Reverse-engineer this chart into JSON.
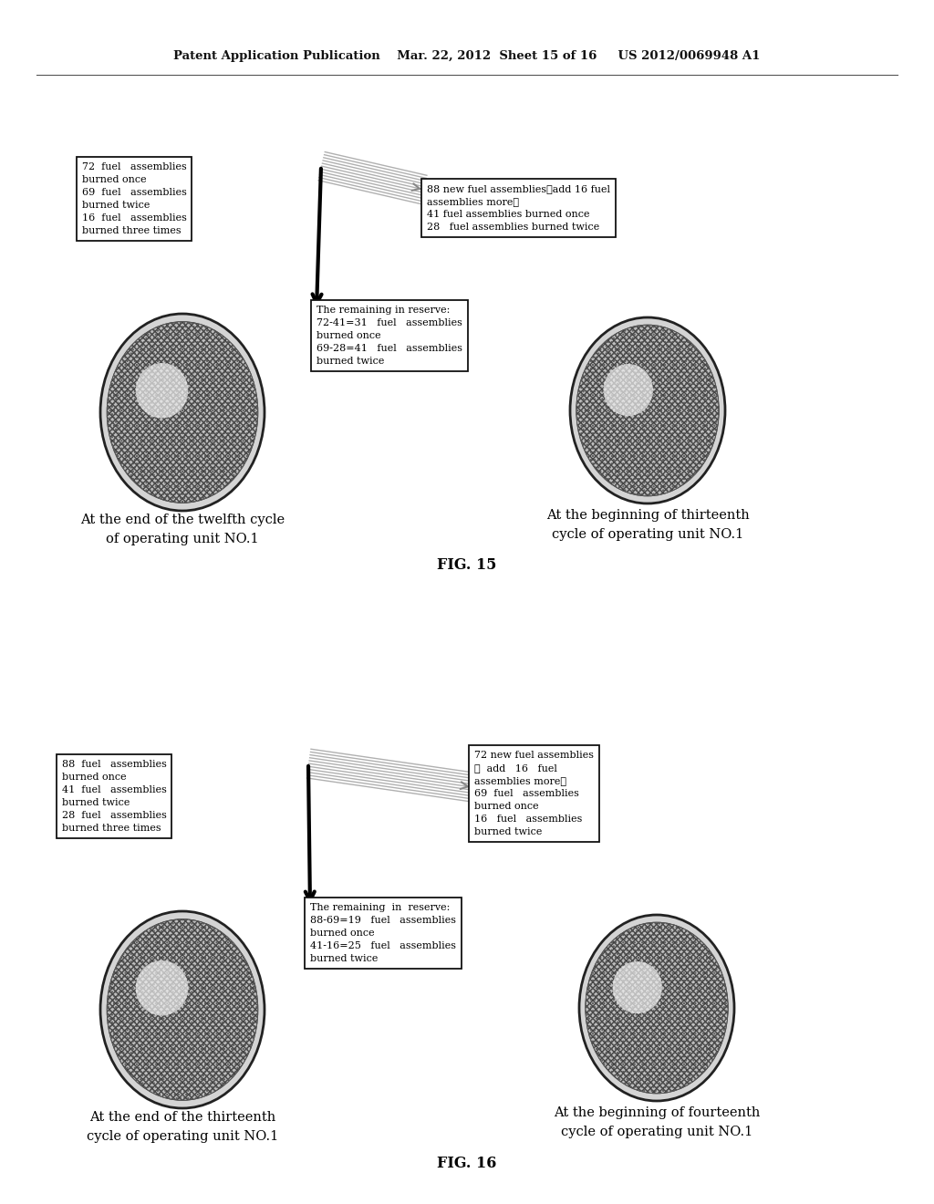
{
  "bg_color": "#ffffff",
  "header": "Patent Application Publication    Mar. 22, 2012  Sheet 15 of 16     US 2012/0069948 A1",
  "fig15": {
    "left_box": "72  fuel   assemblies\nburned once\n69  fuel   assemblies\nburned twice\n16  fuel   assemblies\nburned three times",
    "right_box": "88 new fuel assemblies（add 16 fuel\nassemblies more）\n41 fuel assemblies burned once\n28   fuel assemblies burned twice",
    "center_box": "The remaining in reserve:\n72-41=31   fuel   assemblies\nburned once\n69-28=41   fuel   assemblies\nburned twice",
    "left_label1": "At the end of the twelfth cycle",
    "left_label2": "of operating unit NO.1",
    "right_label1": "At the beginning of thirteenth",
    "right_label2": "cycle of operating unit NO.1",
    "caption": "FIG. 15"
  },
  "fig16": {
    "left_box": "88  fuel   assemblies\nburned once\n41  fuel   assemblies\nburned twice\n28  fuel   assemblies\nburned three times",
    "right_box": "72 new fuel assemblies\n（  add   16   fuel\nassemblies more）\n69  fuel   assemblies\nburned once\n16   fuel   assemblies\nburned twice",
    "center_box": "The remaining  in  reserve:\n88-69=19   fuel   assemblies\nburned once\n41-16=25   fuel   assemblies\nburned twice",
    "left_label1": "At the end of the thirteenth",
    "left_label2": "cycle of operating unit NO.1",
    "right_label1": "At the beginning of fourteenth",
    "right_label2": "cycle of operating unit NO.1",
    "caption": "FIG. 16"
  }
}
